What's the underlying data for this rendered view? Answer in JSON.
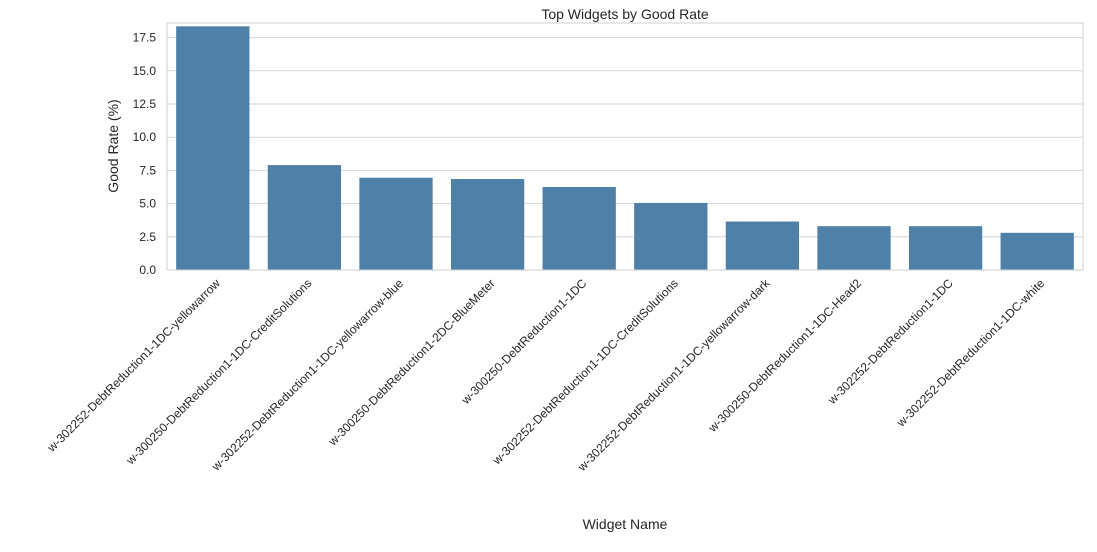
{
  "chart_data": {
    "type": "bar",
    "title": "Top Widgets by Good Rate",
    "xlabel": "Widget Name",
    "ylabel": "Good Rate (%)",
    "ylim": [
      0,
      18.6
    ],
    "yticks": [
      "0.0",
      "2.5",
      "5.0",
      "7.5",
      "10.0",
      "12.5",
      "15.0",
      "17.5"
    ],
    "grid": true,
    "bar_color": "#4f81a8",
    "categories": [
      "w-302252-DebtReduction1-1DC-yellowarrow",
      "w-300250-DebtReduction1-1DC-CreditSolutions",
      "w-302252-DebtReduction1-1DC-yellowarrow-blue",
      "w-300250-DebtReduction1-2DC-BlueMeter",
      "w-300250-DebtReduction1-1DC",
      "w-302252-DebtReduction1-1DC-CreditSolutions",
      "w-302252-DebtReduction1-1DC-yellowarrow-dark",
      "w-300250-DebtReduction1-1DC-Head2",
      "w-302252-DebtReduction1-1DC",
      "w-302252-DebtReduction1-1DC-white"
    ],
    "values": [
      18.35,
      7.9,
      6.95,
      6.85,
      6.25,
      5.05,
      3.65,
      3.3,
      3.3,
      2.8
    ]
  }
}
